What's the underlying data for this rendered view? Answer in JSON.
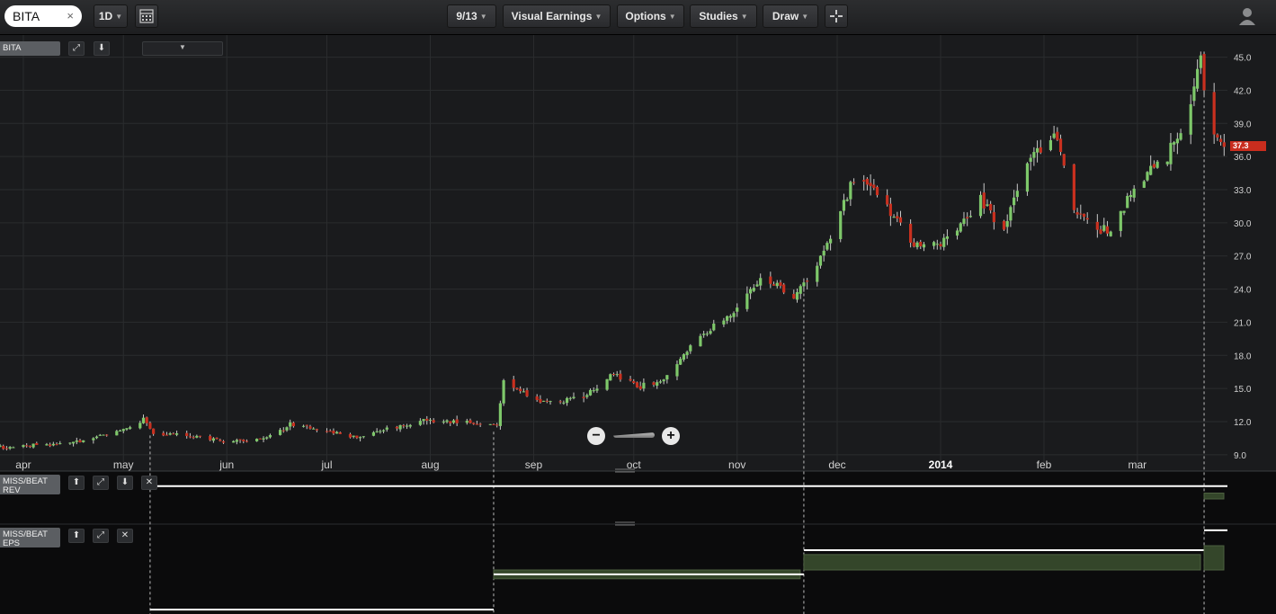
{
  "toolbar": {
    "symbol": "BITA",
    "clear_icon": "×",
    "interval": "1D",
    "date_label": "9/13",
    "visual_earnings": "Visual Earnings",
    "options": "Options",
    "studies": "Studies",
    "draw": "Draw"
  },
  "main_pane": {
    "label": "BITA",
    "last_price": "37.3"
  },
  "panes": [
    {
      "label_line1": "MISS/BEAT",
      "label_line2": "REV"
    },
    {
      "label_line1": "MISS/BEAT",
      "label_line2": "EPS"
    }
  ],
  "colors": {
    "up": "#7ec86a",
    "down": "#c9301f",
    "grid": "#2a2c2e",
    "earnings_fill": "#34462a"
  },
  "chart_data": {
    "type": "candlestick",
    "symbol": "BITA",
    "ylim": [
      8.5,
      47
    ],
    "yticks": [
      9.0,
      12.0,
      15.0,
      18.0,
      21.0,
      24.0,
      27.0,
      30.0,
      33.0,
      36.0,
      39.0,
      42.0,
      45.0
    ],
    "xlim": [
      "2013-03-25",
      "2014-03-28"
    ],
    "xticks": [
      {
        "date": "2013-04-01",
        "label": "apr",
        "bold": false
      },
      {
        "date": "2013-05-01",
        "label": "may",
        "bold": false
      },
      {
        "date": "2013-06-01",
        "label": "jun",
        "bold": false
      },
      {
        "date": "2013-07-01",
        "label": "jul",
        "bold": false
      },
      {
        "date": "2013-08-01",
        "label": "aug",
        "bold": false
      },
      {
        "date": "2013-09-01",
        "label": "sep",
        "bold": false
      },
      {
        "date": "2013-10-01",
        "label": "oct",
        "bold": false
      },
      {
        "date": "2013-11-01",
        "label": "nov",
        "bold": false
      },
      {
        "date": "2013-12-01",
        "label": "dec",
        "bold": false
      },
      {
        "date": "2014-01-01",
        "label": "2014",
        "bold": true
      },
      {
        "date": "2014-02-01",
        "label": "feb",
        "bold": false
      },
      {
        "date": "2014-03-01",
        "label": "mar",
        "bold": false
      }
    ],
    "price_path": [
      [
        "2013-03-25",
        9.7
      ],
      [
        "2013-04-15",
        10.0
      ],
      [
        "2013-04-30",
        11.2
      ],
      [
        "2013-05-07",
        12.2
      ],
      [
        "2013-05-10",
        11.0
      ],
      [
        "2013-05-20",
        10.8
      ],
      [
        "2013-05-31",
        10.2
      ],
      [
        "2013-06-12",
        10.4
      ],
      [
        "2013-06-20",
        11.7
      ],
      [
        "2013-07-01",
        11.3
      ],
      [
        "2013-07-08",
        10.5
      ],
      [
        "2013-07-22",
        11.5
      ],
      [
        "2013-08-01",
        12.1
      ],
      [
        "2013-08-12",
        12.0
      ],
      [
        "2013-08-21",
        11.7
      ],
      [
        "2013-08-23",
        15.5
      ],
      [
        "2013-09-05",
        13.7
      ],
      [
        "2013-09-16",
        14.3
      ],
      [
        "2013-09-25",
        16.3
      ],
      [
        "2013-10-02",
        15.2
      ],
      [
        "2013-10-10",
        15.6
      ],
      [
        "2013-10-20",
        19.5
      ],
      [
        "2013-10-30",
        21.5
      ],
      [
        "2013-11-08",
        25.0
      ],
      [
        "2013-11-18",
        23.5
      ],
      [
        "2013-11-22",
        24.5
      ],
      [
        "2013-12-01",
        30.0
      ],
      [
        "2013-12-06",
        34.0
      ],
      [
        "2013-12-15",
        32.0
      ],
      [
        "2013-12-24",
        28.0
      ],
      [
        "2014-01-03",
        28.5
      ],
      [
        "2014-01-13",
        32.0
      ],
      [
        "2014-01-20",
        29.5
      ],
      [
        "2014-01-28",
        36.0
      ],
      [
        "2014-02-05",
        37.8
      ],
      [
        "2014-02-10",
        31.0
      ],
      [
        "2014-02-20",
        29.2
      ],
      [
        "2014-03-01",
        33.5
      ],
      [
        "2014-03-10",
        36.0
      ],
      [
        "2014-03-17",
        40.0
      ],
      [
        "2014-03-20",
        45.5
      ],
      [
        "2014-03-22",
        39.0
      ],
      [
        "2014-03-27",
        37.3
      ]
    ],
    "earnings_dates": [
      "2013-05-09",
      "2013-08-20",
      "2013-11-21",
      "2014-03-21"
    ],
    "rev_pane": {
      "ylim": [
        -1,
        1
      ],
      "bars": [
        {
          "start": "2013-05-09",
          "end": "2013-08-20",
          "value": 0.0,
          "line": 0.55
        },
        {
          "start": "2013-08-20",
          "end": "2013-11-21",
          "value": 0.0,
          "line": 0.55
        },
        {
          "start": "2013-11-21",
          "end": "2014-03-21",
          "value": 0.0,
          "line": 0.55
        },
        {
          "start": "2014-03-21",
          "end": "2014-03-28",
          "value": 0.25,
          "line": 0.55
        }
      ]
    },
    "eps_pane": {
      "ylim": [
        -1,
        1
      ],
      "bars": [
        {
          "start": "2013-05-09",
          "end": "2013-08-20",
          "value": 0.0,
          "line": -0.9
        },
        {
          "start": "2013-08-20",
          "end": "2013-11-21",
          "value": -0.2,
          "line": -0.1
        },
        {
          "start": "2013-11-21",
          "end": "2014-03-21",
          "value": 0.35,
          "line": 0.45
        },
        {
          "start": "2014-03-21",
          "end": "2014-03-28",
          "value": 0.55,
          "line": 0.9
        }
      ]
    }
  }
}
